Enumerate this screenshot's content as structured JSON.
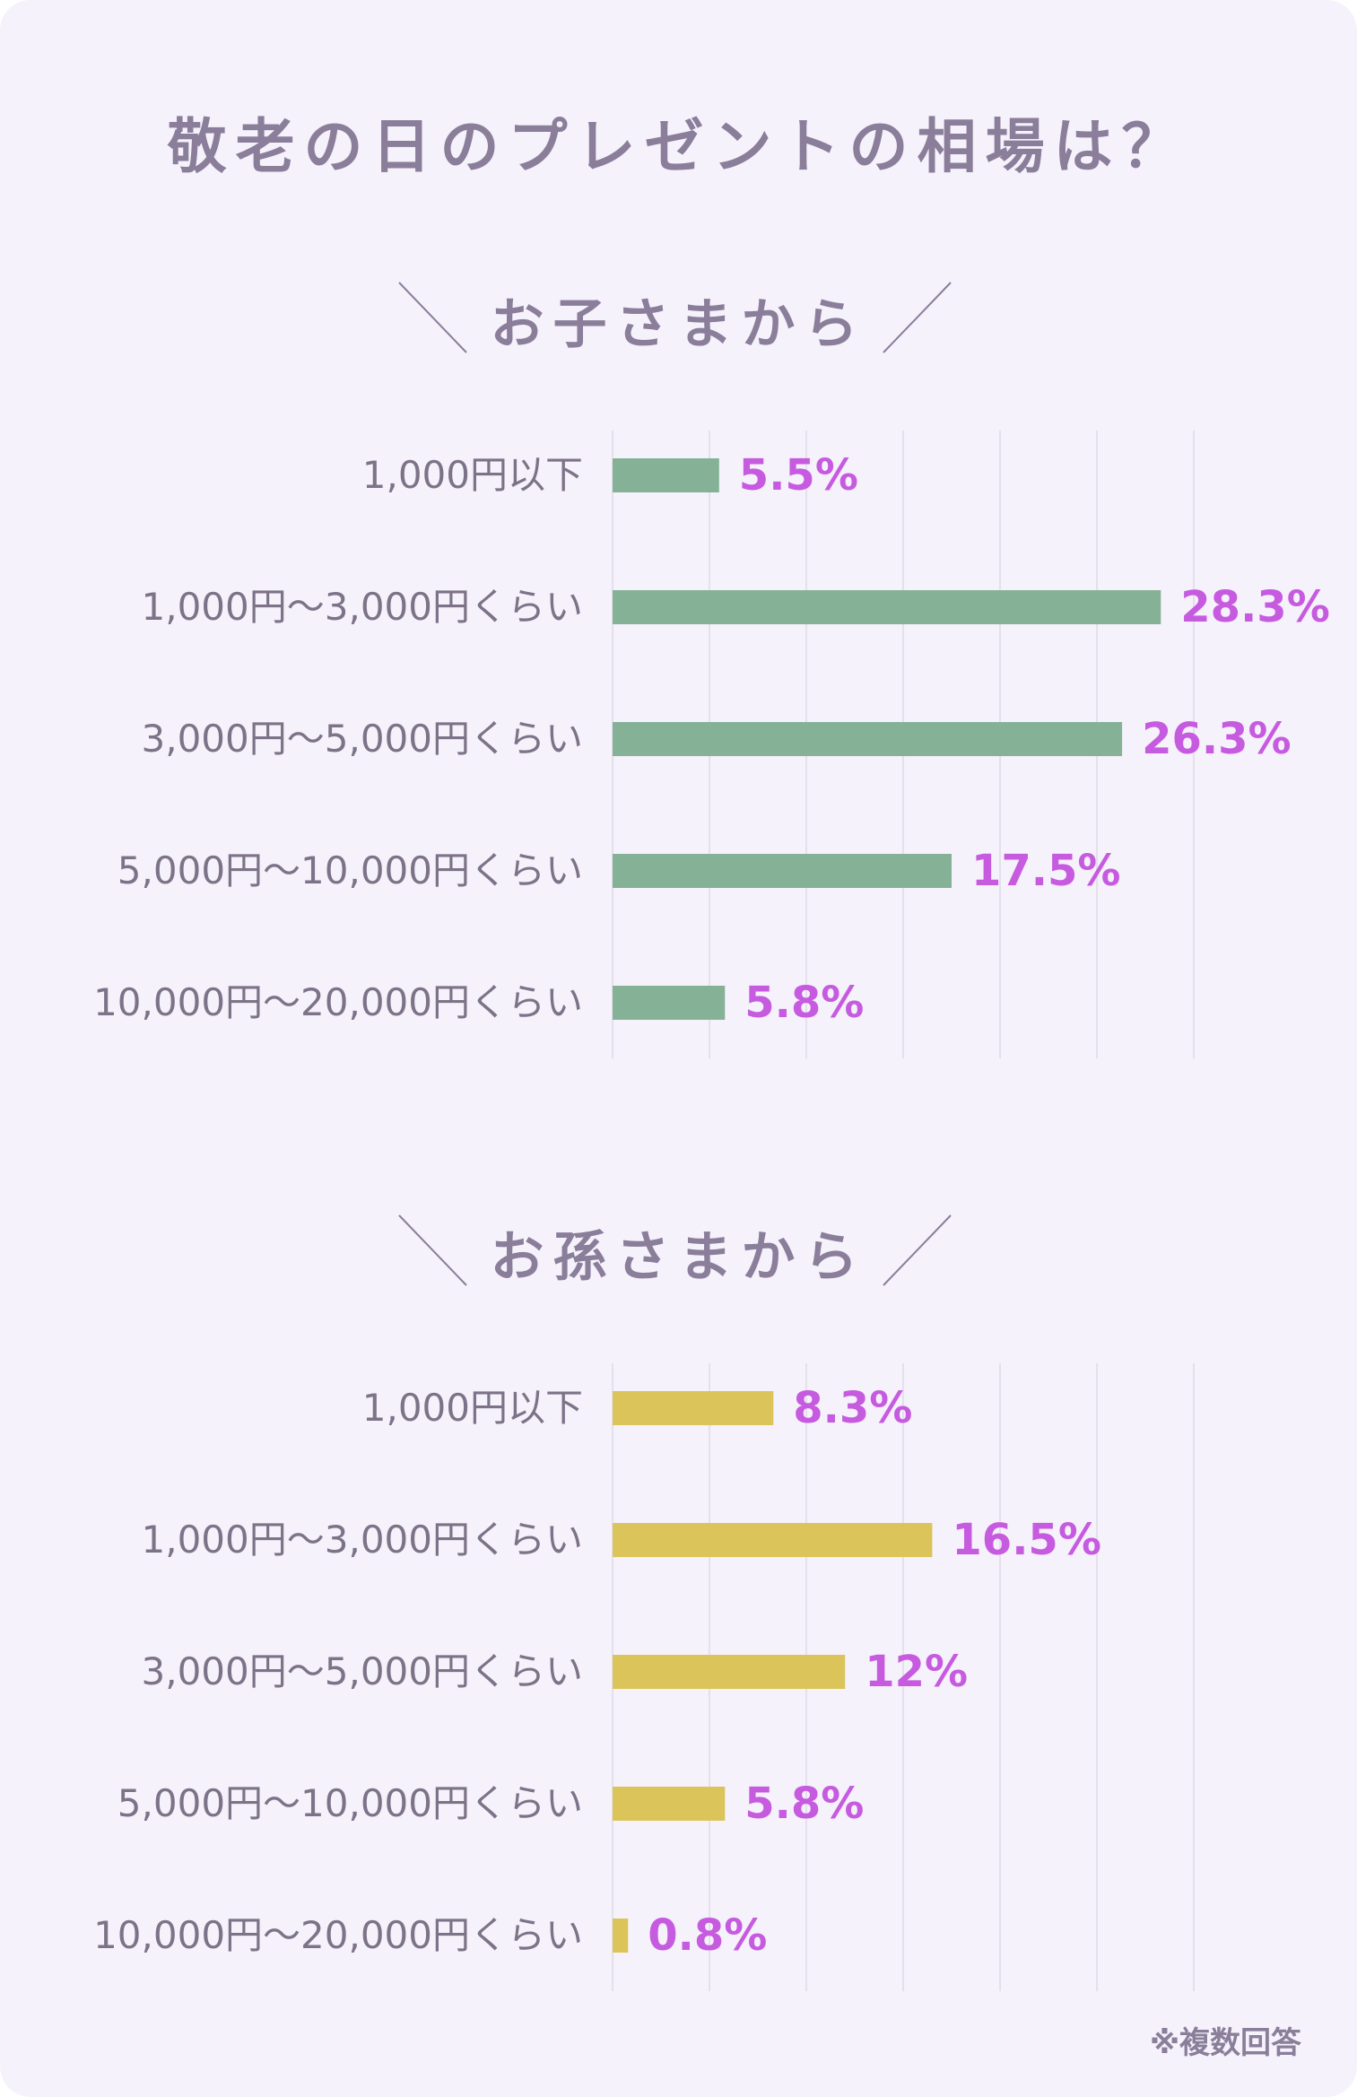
{
  "title": "敬老の日のプレゼントの相場は？",
  "footnote": "※複数回答",
  "colors": {
    "background": "#f5f2fb",
    "title": "#8a7e9a",
    "label": "#7d7388",
    "value": "#c65be0",
    "grid": "#e4e0ec",
    "children_bar": "#85b297",
    "grandchildren_bar": "#dbc45a"
  },
  "chart_data": [
    {
      "type": "bar",
      "orientation": "horizontal",
      "title": "お子さまから",
      "categories": [
        "1,000円以下",
        "1,000円～3,000円くらい",
        "3,000円～5,000円くらい",
        "5,000円～10,000円くらい",
        "10,000円～20,000円くらい"
      ],
      "values": [
        5.5,
        28.3,
        26.3,
        17.5,
        5.8
      ],
      "value_labels": [
        "5.5%",
        "28.3%",
        "26.3%",
        "17.5%",
        "5.8%"
      ],
      "xlim": [
        0,
        30
      ],
      "grid": true,
      "bar_color": "#85b297"
    },
    {
      "type": "bar",
      "orientation": "horizontal",
      "title": "お孫さまから",
      "categories": [
        "1,000円以下",
        "1,000円～3,000円くらい",
        "3,000円～5,000円くらい",
        "5,000円～10,000円くらい",
        "10,000円～20,000円くらい"
      ],
      "values": [
        8.3,
        16.5,
        12,
        5.8,
        0.8
      ],
      "value_labels": [
        "8.3%",
        "16.5%",
        "12%",
        "5.8%",
        "0.8%"
      ],
      "xlim": [
        0,
        30
      ],
      "grid": true,
      "bar_color": "#dbc45a"
    }
  ]
}
